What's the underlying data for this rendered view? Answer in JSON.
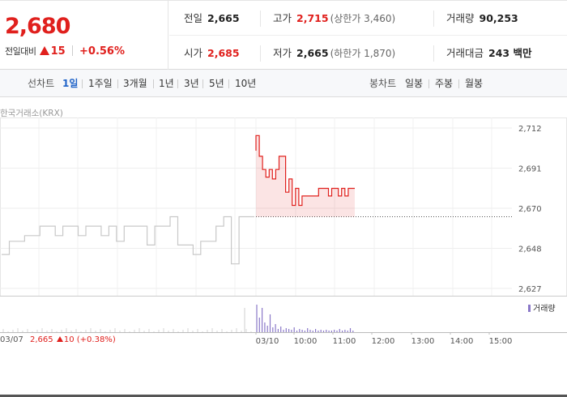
{
  "quote": {
    "price": "2,680",
    "change_label": "전일대비",
    "change_value": "15",
    "change_pct": "+0.56%"
  },
  "stats": {
    "prev_close": {
      "label": "전일",
      "value": "2,665"
    },
    "high": {
      "label": "고가",
      "value": "2,715",
      "sub": "(상한가 3,460)"
    },
    "volume": {
      "label": "거래량",
      "value": "90,253"
    },
    "open": {
      "label": "시가",
      "value": "2,685"
    },
    "low": {
      "label": "저가",
      "value": "2,665",
      "sub": "(하한가 1,870)"
    },
    "amount": {
      "label": "거래대금",
      "value": "243 백만"
    }
  },
  "tabs": {
    "line_label": "선차트",
    "line_items": [
      "1일",
      "1주일",
      "3개월",
      "1년",
      "3년",
      "5년",
      "10년"
    ],
    "active": "1일",
    "candle_label": "봉차트",
    "candle_items": [
      "일봉",
      "주봉",
      "월봉"
    ]
  },
  "chart": {
    "source": "한국거래소(KRX)",
    "volume_legend": "거래량",
    "footer": {
      "date": "03/07",
      "price": "2,665",
      "change": "10",
      "pct": "(+0.38%)"
    }
  },
  "colors": {
    "up": "#e0201d",
    "prev_line": "#c8c8c8",
    "volume": "#8a78c8",
    "active_tab": "#1f63c8"
  },
  "chart_data": {
    "type": "line",
    "y_ticks": [
      "2,712",
      "2,691",
      "2,670",
      "2,648",
      "2,627"
    ],
    "ylim": [
      2627,
      2712
    ],
    "reference_line": 2665,
    "x_ticks": [
      "03/10",
      "10:00",
      "11:00",
      "12:00",
      "13:00",
      "14:00",
      "15:00"
    ],
    "series": [
      {
        "values": [
          2645,
          2645,
          2652,
          2652,
          2655,
          2655,
          2660,
          2660,
          2655,
          2660,
          2660,
          2655,
          2660,
          2660,
          2655,
          2660,
          2652,
          2660,
          2660,
          2660,
          2650,
          2660,
          2660,
          2665,
          2650,
          2650,
          2645,
          2652,
          2652,
          2660,
          2665,
          2640,
          2665,
          2665
        ]
      },
      {
        "values": [
          2700,
          2708,
          2697,
          2690,
          2686,
          2690,
          2685,
          2690,
          2697,
          2697,
          2678,
          2685,
          2671,
          2680,
          2671,
          2676,
          2676,
          2676,
          2676,
          2676,
          2680,
          2680,
          2680,
          2676,
          2680,
          2680,
          2676,
          2680,
          2676,
          2680,
          2680
        ]
      }
    ]
  }
}
